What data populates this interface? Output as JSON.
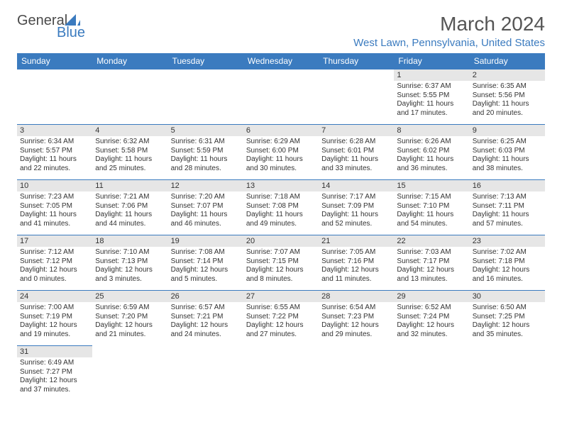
{
  "logo": {
    "text1": "General",
    "text2": "Blue"
  },
  "header": {
    "title": "March 2024",
    "location": "West Lawn, Pennsylvania, United States"
  },
  "colors": {
    "brand": "#3b7bbf",
    "daynum_bg": "#e6e6e6",
    "text": "#333333",
    "header_text": "#555555",
    "bg": "#ffffff"
  },
  "dow": [
    "Sunday",
    "Monday",
    "Tuesday",
    "Wednesday",
    "Thursday",
    "Friday",
    "Saturday"
  ],
  "weeks": [
    [
      null,
      null,
      null,
      null,
      null,
      {
        "n": "1",
        "sr": "6:37 AM",
        "ss": "5:55 PM",
        "dl": "11 hours and 17 minutes."
      },
      {
        "n": "2",
        "sr": "6:35 AM",
        "ss": "5:56 PM",
        "dl": "11 hours and 20 minutes."
      }
    ],
    [
      {
        "n": "3",
        "sr": "6:34 AM",
        "ss": "5:57 PM",
        "dl": "11 hours and 22 minutes."
      },
      {
        "n": "4",
        "sr": "6:32 AM",
        "ss": "5:58 PM",
        "dl": "11 hours and 25 minutes."
      },
      {
        "n": "5",
        "sr": "6:31 AM",
        "ss": "5:59 PM",
        "dl": "11 hours and 28 minutes."
      },
      {
        "n": "6",
        "sr": "6:29 AM",
        "ss": "6:00 PM",
        "dl": "11 hours and 30 minutes."
      },
      {
        "n": "7",
        "sr": "6:28 AM",
        "ss": "6:01 PM",
        "dl": "11 hours and 33 minutes."
      },
      {
        "n": "8",
        "sr": "6:26 AM",
        "ss": "6:02 PM",
        "dl": "11 hours and 36 minutes."
      },
      {
        "n": "9",
        "sr": "6:25 AM",
        "ss": "6:03 PM",
        "dl": "11 hours and 38 minutes."
      }
    ],
    [
      {
        "n": "10",
        "sr": "7:23 AM",
        "ss": "7:05 PM",
        "dl": "11 hours and 41 minutes."
      },
      {
        "n": "11",
        "sr": "7:21 AM",
        "ss": "7:06 PM",
        "dl": "11 hours and 44 minutes."
      },
      {
        "n": "12",
        "sr": "7:20 AM",
        "ss": "7:07 PM",
        "dl": "11 hours and 46 minutes."
      },
      {
        "n": "13",
        "sr": "7:18 AM",
        "ss": "7:08 PM",
        "dl": "11 hours and 49 minutes."
      },
      {
        "n": "14",
        "sr": "7:17 AM",
        "ss": "7:09 PM",
        "dl": "11 hours and 52 minutes."
      },
      {
        "n": "15",
        "sr": "7:15 AM",
        "ss": "7:10 PM",
        "dl": "11 hours and 54 minutes."
      },
      {
        "n": "16",
        "sr": "7:13 AM",
        "ss": "7:11 PM",
        "dl": "11 hours and 57 minutes."
      }
    ],
    [
      {
        "n": "17",
        "sr": "7:12 AM",
        "ss": "7:12 PM",
        "dl": "12 hours and 0 minutes."
      },
      {
        "n": "18",
        "sr": "7:10 AM",
        "ss": "7:13 PM",
        "dl": "12 hours and 3 minutes."
      },
      {
        "n": "19",
        "sr": "7:08 AM",
        "ss": "7:14 PM",
        "dl": "12 hours and 5 minutes."
      },
      {
        "n": "20",
        "sr": "7:07 AM",
        "ss": "7:15 PM",
        "dl": "12 hours and 8 minutes."
      },
      {
        "n": "21",
        "sr": "7:05 AM",
        "ss": "7:16 PM",
        "dl": "12 hours and 11 minutes."
      },
      {
        "n": "22",
        "sr": "7:03 AM",
        "ss": "7:17 PM",
        "dl": "12 hours and 13 minutes."
      },
      {
        "n": "23",
        "sr": "7:02 AM",
        "ss": "7:18 PM",
        "dl": "12 hours and 16 minutes."
      }
    ],
    [
      {
        "n": "24",
        "sr": "7:00 AM",
        "ss": "7:19 PM",
        "dl": "12 hours and 19 minutes."
      },
      {
        "n": "25",
        "sr": "6:59 AM",
        "ss": "7:20 PM",
        "dl": "12 hours and 21 minutes."
      },
      {
        "n": "26",
        "sr": "6:57 AM",
        "ss": "7:21 PM",
        "dl": "12 hours and 24 minutes."
      },
      {
        "n": "27",
        "sr": "6:55 AM",
        "ss": "7:22 PM",
        "dl": "12 hours and 27 minutes."
      },
      {
        "n": "28",
        "sr": "6:54 AM",
        "ss": "7:23 PM",
        "dl": "12 hours and 29 minutes."
      },
      {
        "n": "29",
        "sr": "6:52 AM",
        "ss": "7:24 PM",
        "dl": "12 hours and 32 minutes."
      },
      {
        "n": "30",
        "sr": "6:50 AM",
        "ss": "7:25 PM",
        "dl": "12 hours and 35 minutes."
      }
    ],
    [
      {
        "n": "31",
        "sr": "6:49 AM",
        "ss": "7:27 PM",
        "dl": "12 hours and 37 minutes."
      },
      null,
      null,
      null,
      null,
      null,
      null
    ]
  ],
  "labels": {
    "sunrise": "Sunrise:",
    "sunset": "Sunset:",
    "daylight": "Daylight:"
  }
}
